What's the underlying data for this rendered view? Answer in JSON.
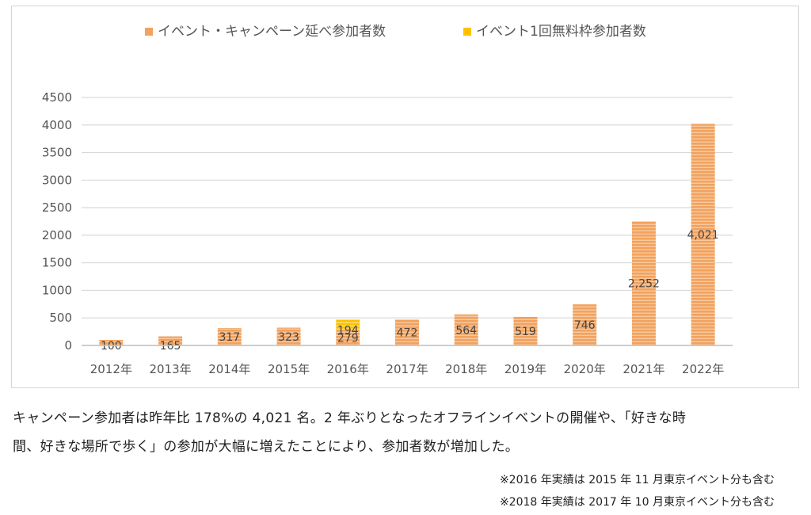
{
  "chart_data": {
    "type": "bar",
    "stacked": true,
    "categories": [
      "2012年",
      "2013年",
      "2014年",
      "2015年",
      "2016年",
      "2017年",
      "2018年",
      "2019年",
      "2020年",
      "2021年",
      "2022年"
    ],
    "series": [
      {
        "name": "イベント・キャンペーン延べ参加者数",
        "color": "#f0a060",
        "values": [
          100,
          165,
          317,
          323,
          279,
          472,
          564,
          519,
          746,
          2252,
          4021
        ]
      },
      {
        "name": "イベント1回無料枠参加者数",
        "color": "#ffc000",
        "values": [
          0,
          0,
          0,
          0,
          194,
          0,
          0,
          0,
          0,
          0,
          0
        ]
      }
    ],
    "data_labels": {
      "series0": [
        "100",
        "165",
        "317",
        "323",
        "279",
        "472",
        "564",
        "519",
        "746",
        "2,252",
        "4,021"
      ],
      "series1": [
        "",
        "",
        "",
        "",
        "194",
        "",
        "",
        "",
        "",
        "",
        ""
      ]
    },
    "yticks": [
      "0",
      "500",
      "1000",
      "1500",
      "2000",
      "2500",
      "3000",
      "3500",
      "4000",
      "4500"
    ],
    "ylim": [
      0,
      4500
    ],
    "grid": true,
    "legend_position": "top"
  },
  "caption": {
    "line1": "キャンペーン参加者は昨年比 178%の 4,021 名。2 年ぶりとなったオフラインイベントの開催や、「好きな時",
    "line2": "間、好きな場所で歩く」の参加が大幅に増えたことにより、参加者数が増加した。"
  },
  "notes": [
    "※2016 年実績は 2015 年 11 月東京イベント分も含む",
    "※2018 年実績は 2017 年 10 月東京イベント分も含む"
  ]
}
